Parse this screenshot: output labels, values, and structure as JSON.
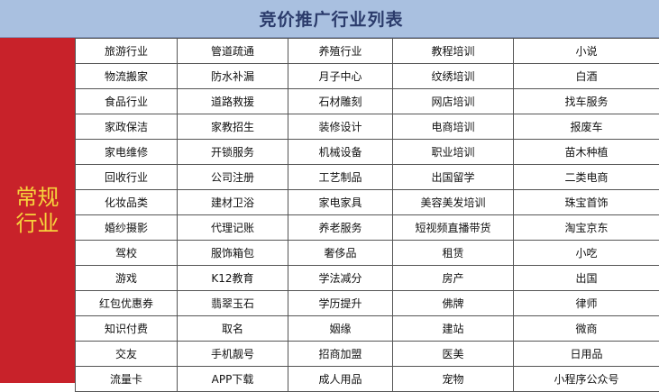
{
  "title": "竞价推广行业列表",
  "category_label": "常规行业",
  "colors": {
    "header_bg": "#a9c0e0",
    "title": "#2b3b6b",
    "side_bg": "#c8222a",
    "side_text": "#f6d33c"
  },
  "rows": [
    [
      "旅游行业",
      "管道疏通",
      "养殖行业",
      "教程培训",
      "小说"
    ],
    [
      "物流搬家",
      "防水补漏",
      "月子中心",
      "纹绣培训",
      "白酒"
    ],
    [
      "食品行业",
      "道路救援",
      "石材雕刻",
      "网店培训",
      "找车服务"
    ],
    [
      "家政保洁",
      "家教招生",
      "装修设计",
      "电商培训",
      "报废车"
    ],
    [
      "家电维修",
      "开锁服务",
      "机械设备",
      "职业培训",
      "苗木种植"
    ],
    [
      "回收行业",
      "公司注册",
      "工艺制品",
      "出国留学",
      "二类电商"
    ],
    [
      "化妆品类",
      "建材卫浴",
      "家电家具",
      "美容美发培训",
      "珠宝首饰"
    ],
    [
      "婚纱摄影",
      "代理记账",
      "养老服务",
      "短视频直播带货",
      "淘宝京东"
    ],
    [
      "驾校",
      "服饰箱包",
      "奢侈品",
      "租赁",
      "小吃"
    ],
    [
      "游戏",
      "K12教育",
      "学法减分",
      "房产",
      "出国"
    ],
    [
      "红包优惠券",
      "翡翠玉石",
      "学历提升",
      "佛牌",
      "律师"
    ],
    [
      "知识付费",
      "取名",
      "姻缘",
      "建站",
      "微商"
    ],
    [
      "交友",
      "手机靓号",
      "招商加盟",
      "医美",
      "日用品"
    ],
    [
      "流量卡",
      "APP下载",
      "成人用品",
      "宠物",
      "小程序公众号"
    ]
  ]
}
